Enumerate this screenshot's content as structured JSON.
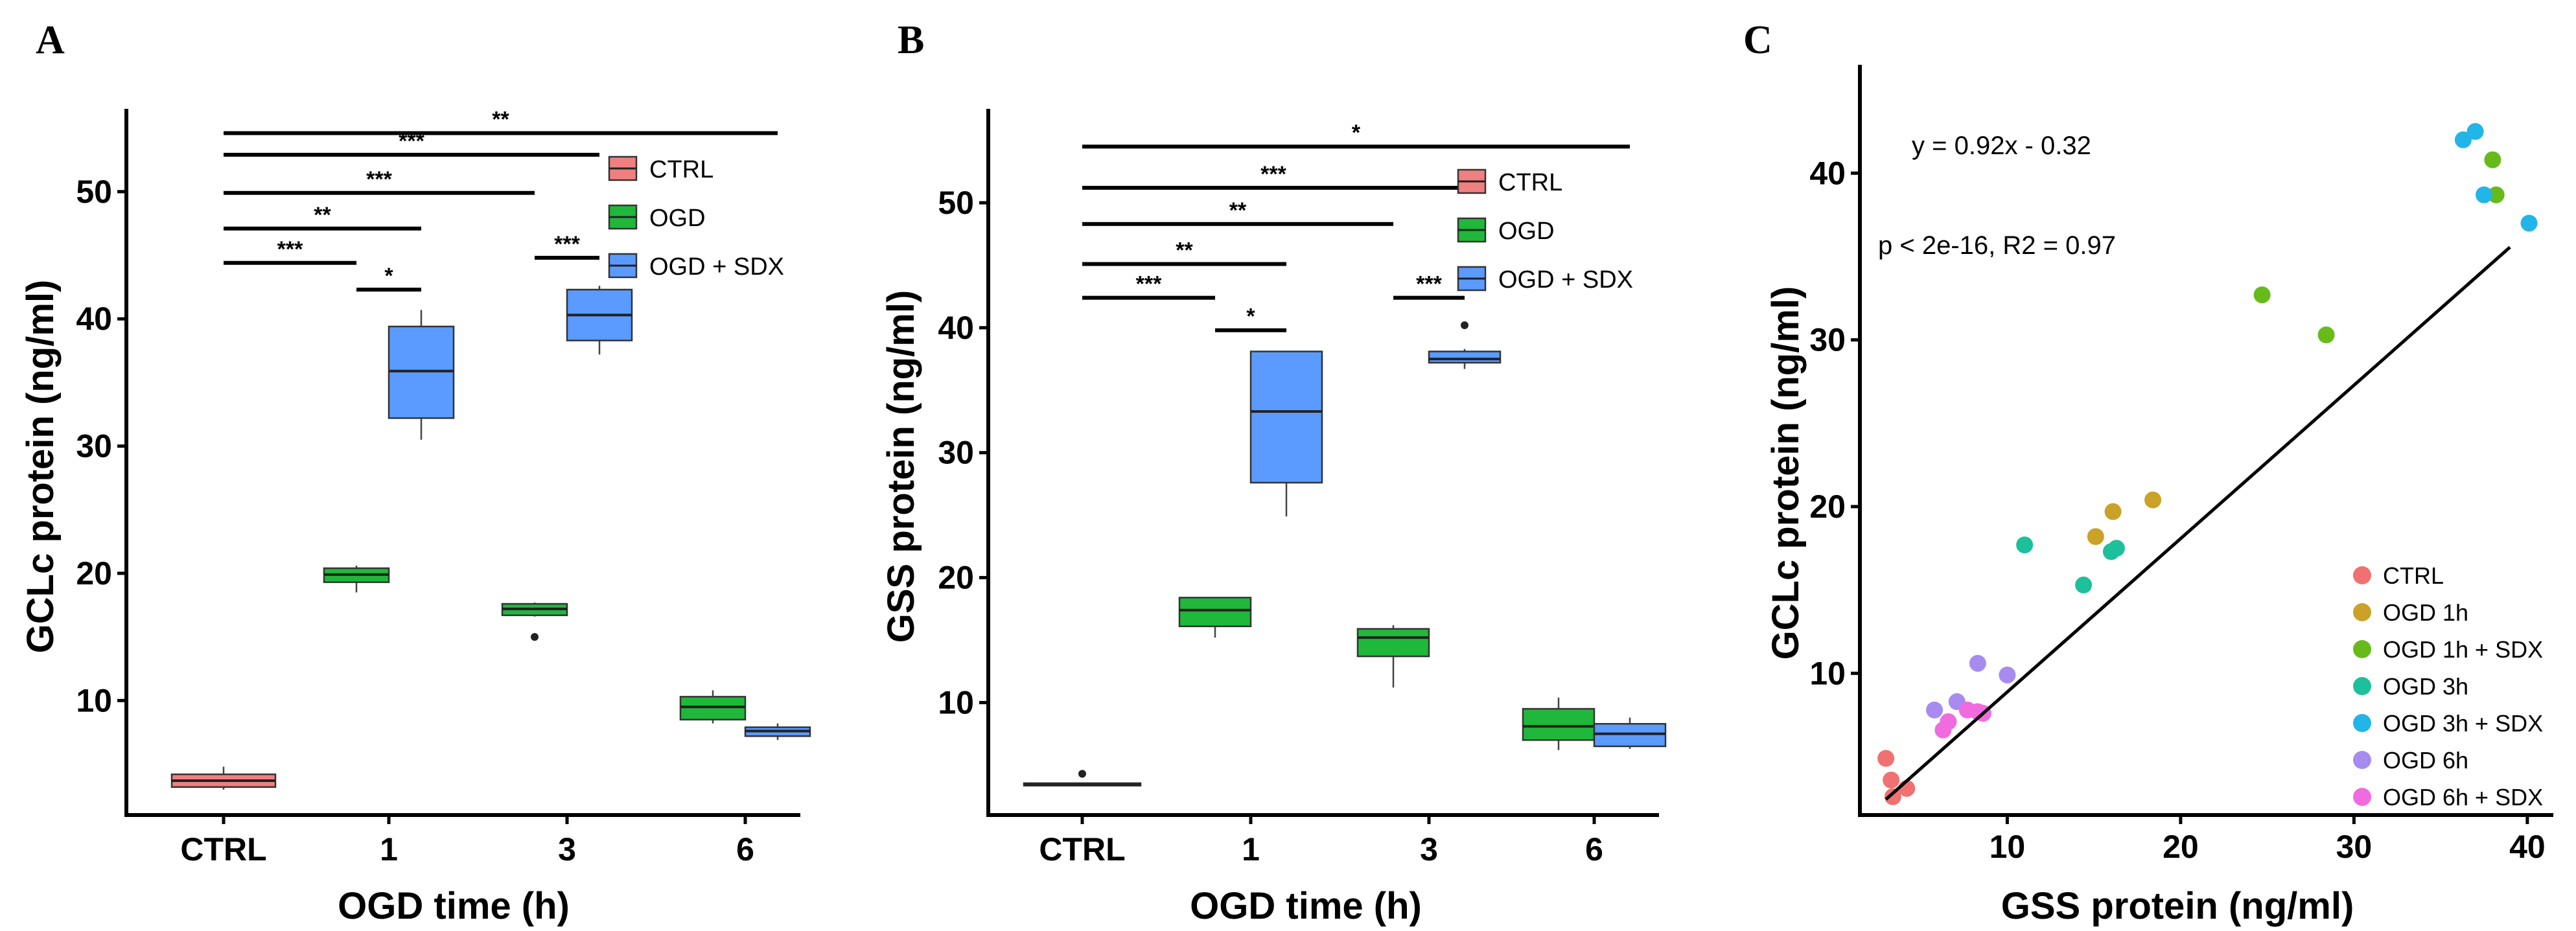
{
  "colors": {
    "ctrl": "#F08080",
    "ogd": "#1FB83A",
    "sdx": "#5B9BFF",
    "scatter": [
      "#F07171",
      "#C9A227",
      "#66BB1A",
      "#1CC09A",
      "#22B5E8",
      "#A78BF0",
      "#F06BE0"
    ]
  },
  "chart_data": [
    {
      "panel": "A",
      "type": "box",
      "title": "",
      "xlabel": "OGD time (h)",
      "ylabel": "GCLc protein (ng/ml)",
      "ylim": [
        1,
        56
      ],
      "yticks": [
        "10",
        "20",
        "30",
        "40",
        "50"
      ],
      "categories": [
        "CTRL",
        "1",
        "3",
        "6"
      ],
      "legend": [
        "CTRL",
        "OGD",
        "OGD + SDX"
      ],
      "legend_position": "top-right",
      "boxes": [
        {
          "name": "CTRL",
          "category": "CTRL",
          "group": "ctrl",
          "min": 3.0,
          "q1": 3.2,
          "median": 3.7,
          "q3": 4.2,
          "max": 4.8,
          "outliers": []
        },
        {
          "name": "OGD 1h",
          "category": "1",
          "group": "ogd",
          "min": 18.5,
          "q1": 19.3,
          "median": 19.9,
          "q3": 20.4,
          "max": 20.6,
          "outliers": []
        },
        {
          "name": "OGD 1h + SDX",
          "category": "1",
          "group": "sdx",
          "min": 30.5,
          "q1": 32.2,
          "median": 35.9,
          "q3": 39.4,
          "max": 40.7,
          "outliers": []
        },
        {
          "name": "OGD 3h",
          "category": "3",
          "group": "ogd",
          "min": 16.6,
          "q1": 16.7,
          "median": 17.2,
          "q3": 17.6,
          "max": 17.7,
          "outliers": [
            15.0
          ]
        },
        {
          "name": "OGD 3h + SDX",
          "category": "3",
          "group": "sdx",
          "min": 37.2,
          "q1": 38.3,
          "median": 40.3,
          "q3": 42.3,
          "max": 42.6,
          "outliers": []
        },
        {
          "name": "OGD 6h",
          "category": "6",
          "group": "ogd",
          "min": 8.2,
          "q1": 8.5,
          "median": 9.5,
          "q3": 10.3,
          "max": 10.8,
          "outliers": []
        },
        {
          "name": "OGD 6h + SDX",
          "category": "6",
          "group": "sdx",
          "min": 6.9,
          "q1": 7.2,
          "median": 7.6,
          "q3": 7.9,
          "max": 8.2,
          "outliers": []
        }
      ],
      "significance": [
        {
          "from": "CTRL",
          "to": "OGD 6h + SDX",
          "label": "**",
          "y": 54.6
        },
        {
          "from": "CTRL",
          "to": "OGD 3h + SDX",
          "label": "***",
          "y": 52.9
        },
        {
          "from": "CTRL",
          "to": "OGD 3h",
          "label": "***",
          "y": 49.9
        },
        {
          "from": "CTRL",
          "to": "OGD 1h + SDX",
          "label": "**",
          "y": 47.1
        },
        {
          "from": "CTRL",
          "to": "OGD 1h",
          "label": "***",
          "y": 44.4
        },
        {
          "from": "OGD 1h",
          "to": "OGD 1h + SDX",
          "label": "*",
          "y": 42.3
        },
        {
          "from": "OGD 3h",
          "to": "OGD 3h + SDX",
          "label": "***",
          "y": 44.8
        }
      ]
    },
    {
      "panel": "B",
      "type": "box",
      "title": "",
      "xlabel": "OGD time (h)",
      "ylabel": "GSS protein (ng/ml)",
      "ylim": [
        1,
        57
      ],
      "yticks": [
        "10",
        "20",
        "30",
        "40",
        "50"
      ],
      "categories": [
        "CTRL",
        "1",
        "3",
        "6"
      ],
      "legend": [
        "CTRL",
        "OGD",
        "OGD + SDX"
      ],
      "legend_position": "top-right",
      "boxes": [
        {
          "name": "CTRL",
          "category": "CTRL",
          "group": "ctrl",
          "min": 3.3,
          "q1": 3.35,
          "median": 3.45,
          "q3": 3.55,
          "max": 3.6,
          "outliers": [
            4.3
          ]
        },
        {
          "name": "OGD 1h",
          "category": "1",
          "group": "ogd",
          "min": 15.2,
          "q1": 16.1,
          "median": 17.4,
          "q3": 18.4,
          "max": 18.4,
          "outliers": []
        },
        {
          "name": "OGD 1h + SDX",
          "category": "1",
          "group": "sdx",
          "min": 24.9,
          "q1": 27.6,
          "median": 33.3,
          "q3": 38.1,
          "max": 38.1,
          "outliers": []
        },
        {
          "name": "OGD 3h",
          "category": "3",
          "group": "ogd",
          "min": 11.2,
          "q1": 13.7,
          "median": 15.2,
          "q3": 15.9,
          "max": 16.2,
          "outliers": []
        },
        {
          "name": "OGD 3h + SDX",
          "category": "3",
          "group": "sdx",
          "min": 36.7,
          "q1": 37.2,
          "median": 37.5,
          "q3": 38.1,
          "max": 38.3,
          "outliers": [
            40.2
          ]
        },
        {
          "name": "OGD 6h",
          "category": "6",
          "group": "ogd",
          "min": 6.2,
          "q1": 7.0,
          "median": 8.1,
          "q3": 9.5,
          "max": 10.4,
          "outliers": []
        },
        {
          "name": "OGD 6h + SDX",
          "category": "6",
          "group": "sdx",
          "min": 6.3,
          "q1": 6.5,
          "median": 7.5,
          "q3": 8.3,
          "max": 8.8,
          "outliers": []
        }
      ],
      "significance": [
        {
          "from": "CTRL",
          "to": "OGD 6h + SDX",
          "label": "*",
          "y": 54.5
        },
        {
          "from": "CTRL",
          "to": "OGD 3h + SDX",
          "label": "***",
          "y": 51.2
        },
        {
          "from": "CTRL",
          "to": "OGD 3h",
          "label": "**",
          "y": 48.3
        },
        {
          "from": "CTRL",
          "to": "OGD 1h + SDX",
          "label": "**",
          "y": 45.1
        },
        {
          "from": "CTRL",
          "to": "OGD 1h",
          "label": "***",
          "y": 42.4
        },
        {
          "from": "OGD 1h",
          "to": "OGD 1h + SDX",
          "label": "*",
          "y": 39.8
        },
        {
          "from": "OGD 3h",
          "to": "OGD 3h + SDX",
          "label": "***",
          "y": 42.4
        }
      ]
    },
    {
      "panel": "C",
      "type": "scatter",
      "title": "",
      "xlabel": "GSS protein (ng/ml)",
      "ylabel": "GCLc protein (ng/ml)",
      "xlim": [
        1.5,
        41.5
      ],
      "ylim": [
        1.5,
        46.5
      ],
      "xticks": [
        "10",
        "20",
        "30",
        "40"
      ],
      "yticks": [
        "10",
        "20",
        "30",
        "40"
      ],
      "annotation_eq": "y = 0.92x - 0.32",
      "annotation_stats": "p < 2e-16, R2 = 0.97",
      "fit": {
        "slope": 0.92,
        "intercept": -0.32,
        "x_range": [
          3.0,
          39.0
        ]
      },
      "legend_position": "bottom-right",
      "series": [
        {
          "name": "CTRL",
          "color_index": 0,
          "points": [
            [
              3.0,
              4.9
            ],
            [
              3.3,
              3.6
            ],
            [
              3.4,
              2.6
            ],
            [
              4.2,
              3.1
            ]
          ]
        },
        {
          "name": "OGD 1h",
          "color_index": 1,
          "points": [
            [
              15.1,
              18.2
            ],
            [
              16.1,
              19.7
            ],
            [
              18.4,
              20.4
            ]
          ]
        },
        {
          "name": "OGD 1h + SDX",
          "color_index": 2,
          "points": [
            [
              24.7,
              32.7
            ],
            [
              28.4,
              30.3
            ],
            [
              38.0,
              40.8
            ],
            [
              38.2,
              38.7
            ]
          ]
        },
        {
          "name": "OGD 3h",
          "color_index": 3,
          "points": [
            [
              11.0,
              17.7
            ],
            [
              14.4,
              15.3
            ],
            [
              16.0,
              17.3
            ],
            [
              16.3,
              17.5
            ]
          ]
        },
        {
          "name": "OGD 3h + SDX",
          "color_index": 4,
          "points": [
            [
              36.3,
              42.0
            ],
            [
              37.0,
              42.5
            ],
            [
              37.5,
              38.7
            ],
            [
              40.1,
              37.0
            ]
          ]
        },
        {
          "name": "OGD 6h",
          "color_index": 5,
          "points": [
            [
              5.8,
              7.8
            ],
            [
              7.1,
              8.3
            ],
            [
              8.3,
              10.6
            ],
            [
              10.0,
              9.9
            ]
          ]
        },
        {
          "name": "OGD 6h + SDX",
          "color_index": 6,
          "points": [
            [
              6.3,
              6.6
            ],
            [
              6.6,
              7.1
            ],
            [
              7.7,
              7.8
            ],
            [
              8.3,
              7.7
            ],
            [
              8.6,
              7.6
            ]
          ]
        }
      ]
    }
  ]
}
